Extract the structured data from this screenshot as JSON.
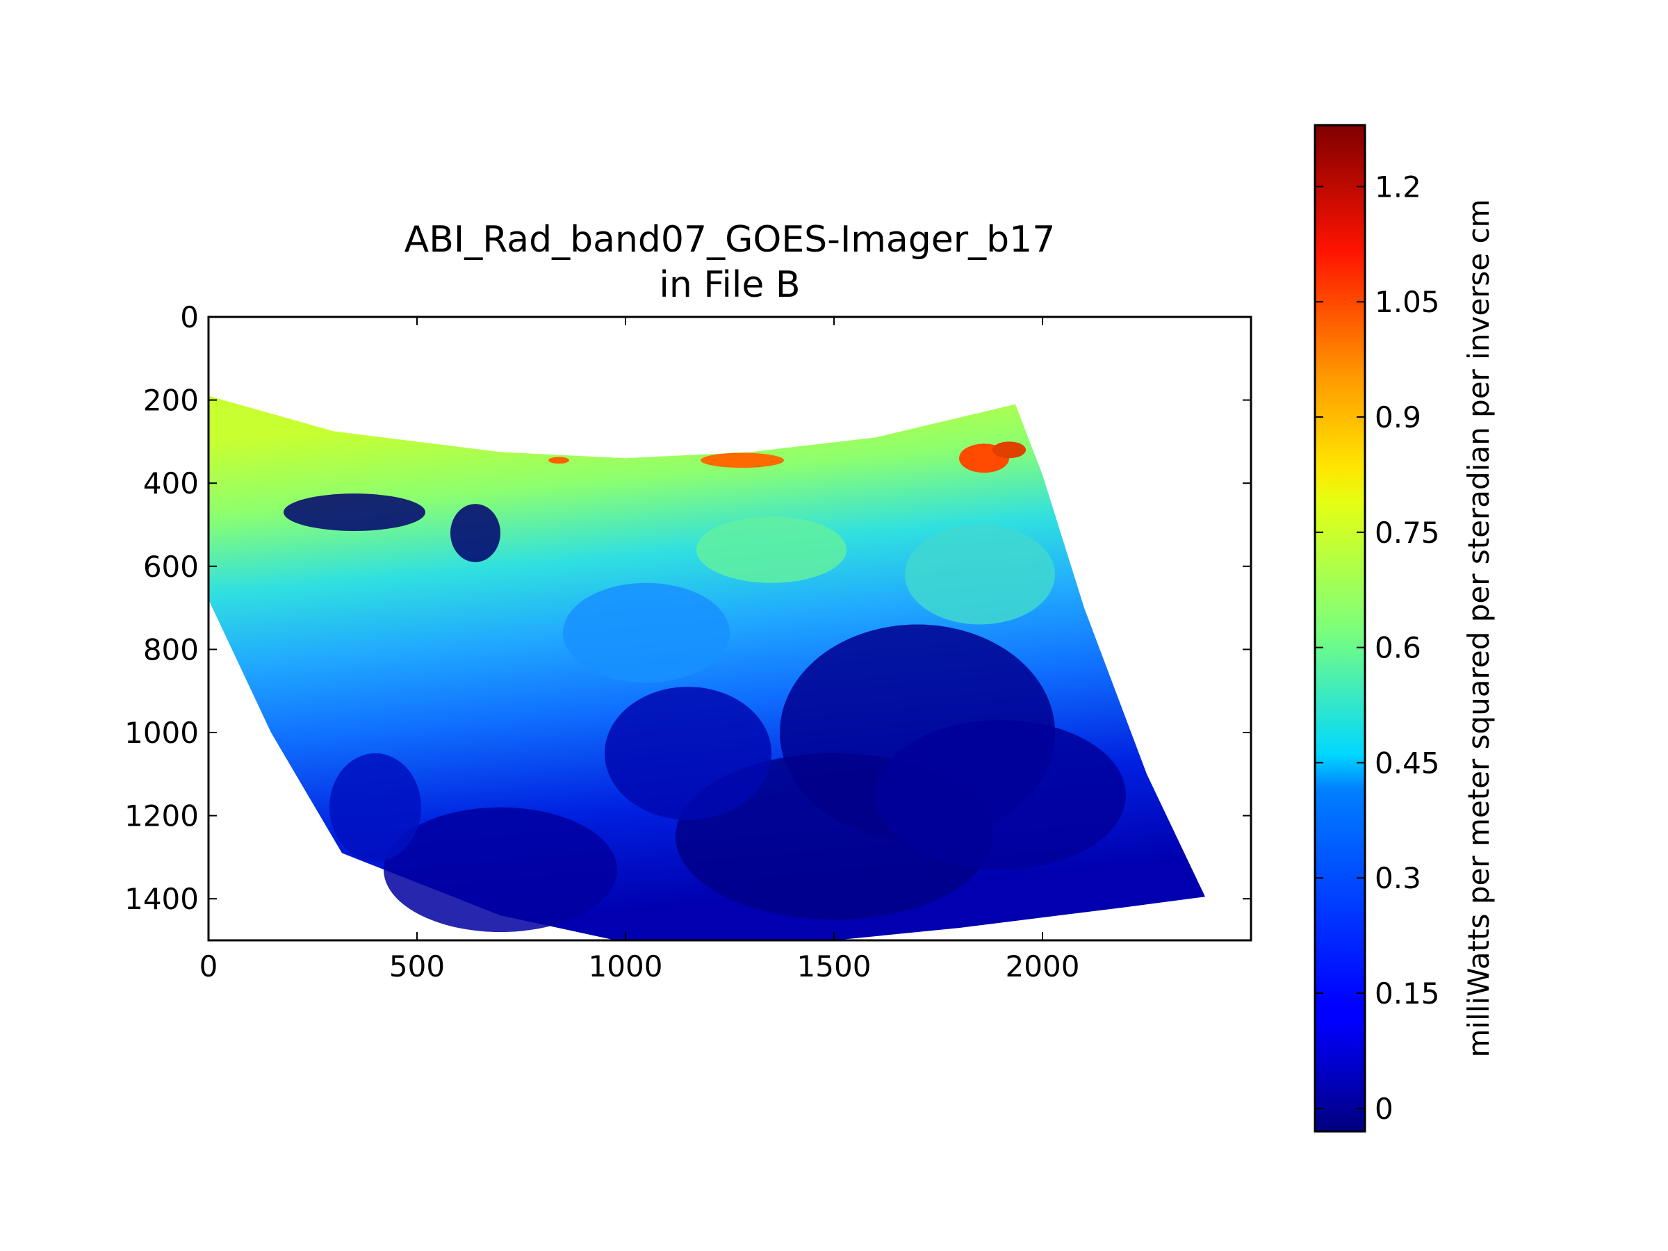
{
  "chart_data": {
    "type": "heatmap",
    "title_line1": "ABI_Rad_band07_GOES-Imager_b17",
    "title_line2": "in File B",
    "xlabel": "",
    "ylabel": "",
    "xlim": [
      0,
      2500
    ],
    "ylim": [
      1500,
      0
    ],
    "x_ticks": [
      0,
      500,
      1000,
      1500,
      2000
    ],
    "x_tick_labels": [
      "0",
      "500",
      "1000",
      "1500",
      "2000"
    ],
    "y_ticks": [
      0,
      200,
      400,
      600,
      800,
      1000,
      1200,
      1400
    ],
    "y_tick_labels": [
      "0",
      "200",
      "400",
      "600",
      "800",
      "1000",
      "1200",
      "1400"
    ],
    "grid": false,
    "colormap": "jet",
    "colorbar": {
      "label": "milliWatts per meter squared per steradian per inverse cm",
      "range": [
        -0.03,
        1.28
      ],
      "ticks": [
        0,
        0.15,
        0.3,
        0.45,
        0.6,
        0.75,
        0.9,
        1.05,
        1.2
      ],
      "tick_labels": [
        "0",
        "0.15",
        "0.3",
        "0.45",
        "0.6",
        "0.75",
        "0.9",
        "1.05",
        "1.2"
      ],
      "placement": "right"
    },
    "data_region_outline": [
      [
        0,
        190
      ],
      [
        300,
        275
      ],
      [
        700,
        325
      ],
      [
        1000,
        340
      ],
      [
        1300,
        325
      ],
      [
        1600,
        290
      ],
      [
        1935,
        210
      ],
      [
        2000,
        380
      ],
      [
        2100,
        700
      ],
      [
        2250,
        1100
      ],
      [
        2390,
        1395
      ],
      [
        2200,
        1420
      ],
      [
        1800,
        1470
      ],
      [
        1400,
        1510
      ],
      [
        1000,
        1505
      ],
      [
        700,
        1440
      ],
      [
        320,
        1290
      ],
      [
        150,
        1000
      ],
      [
        0,
        680
      ]
    ]
  }
}
